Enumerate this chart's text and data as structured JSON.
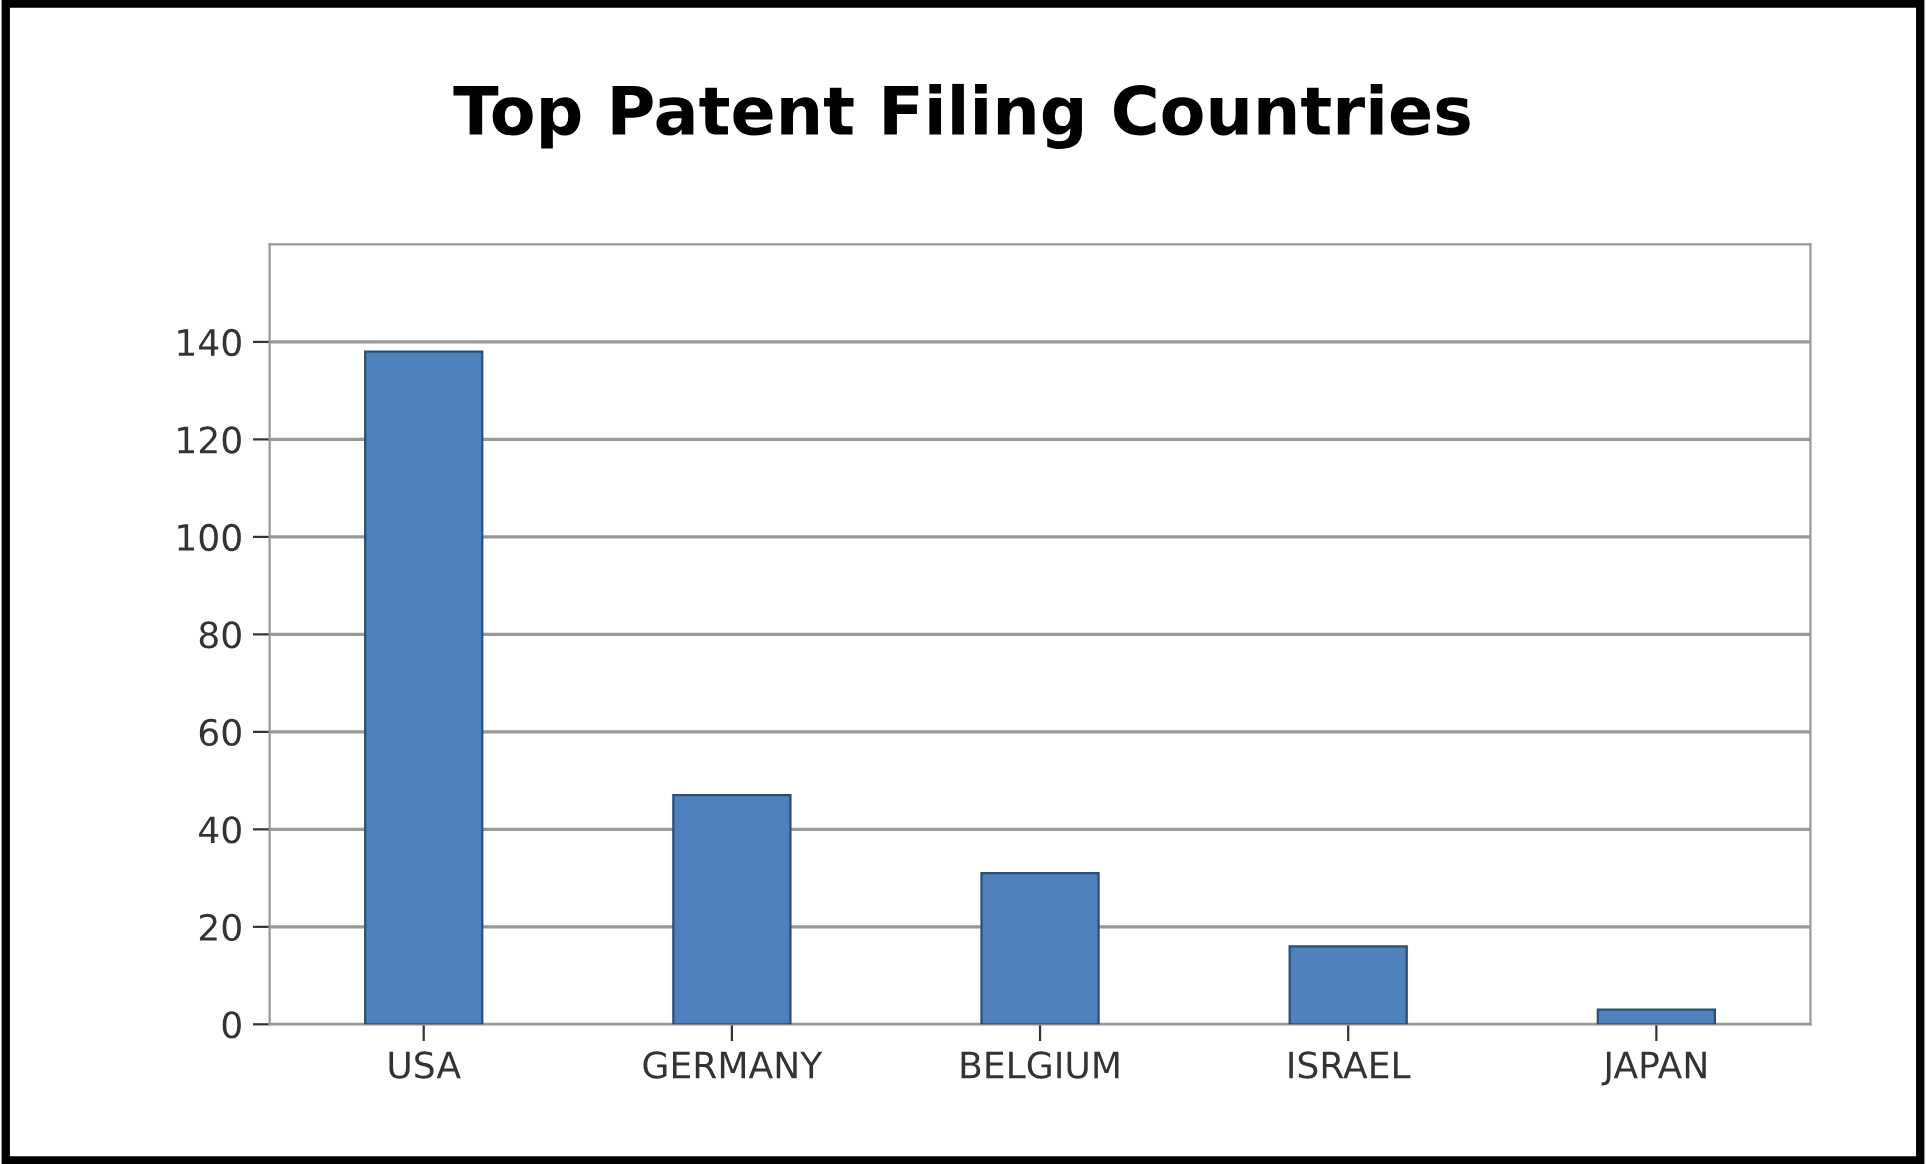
{
  "chart_data": {
    "type": "bar",
    "title": "Top Patent Filing Countries",
    "categories": [
      "USA",
      "GERMANY",
      "BELGIUM",
      "ISRAEL",
      "JAPAN"
    ],
    "values": [
      138,
      47,
      31,
      16,
      3
    ],
    "color": "#4f81bd",
    "ylim": [
      0,
      160
    ],
    "yticks": [
      0,
      20,
      40,
      60,
      80,
      100,
      120,
      140
    ],
    "grid": "y"
  }
}
